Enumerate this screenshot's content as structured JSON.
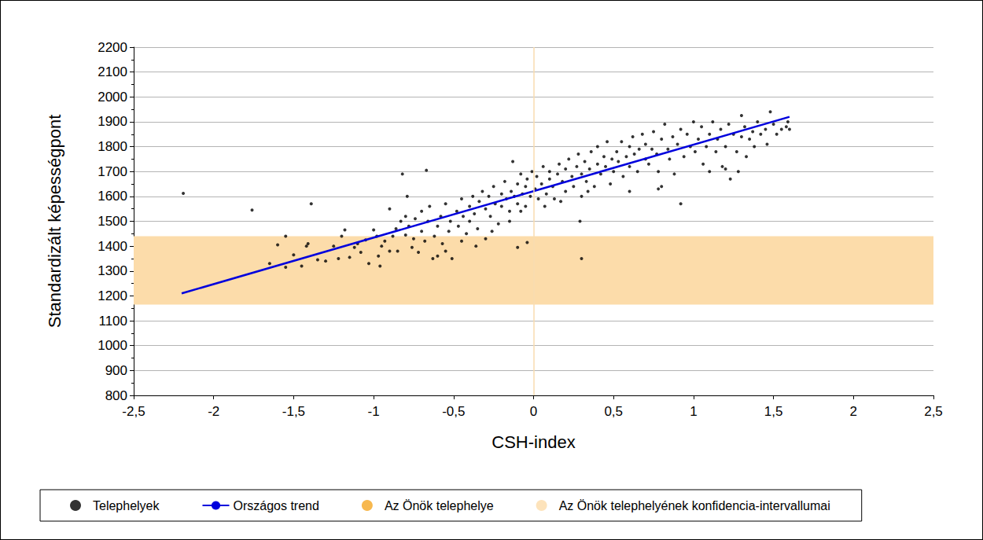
{
  "chart_data": {
    "type": "scatter",
    "x_label": "CSH-index",
    "y_label": "Standardizált képességpont",
    "xlim": [
      -2.5,
      2.5
    ],
    "xticks": [
      {
        "value": -2.5,
        "label": "-2,5"
      },
      -2,
      {
        "value": -1.5,
        "label": "-1,5"
      },
      -1,
      {
        "value": -0.5,
        "label": "-0,5"
      },
      0,
      {
        "value": 0.5,
        "label": "0,5"
      },
      1,
      {
        "value": 1.5,
        "label": "1,5"
      },
      2,
      {
        "value": 2.5,
        "label": "2,5"
      }
    ],
    "ylim": [
      800,
      2200
    ],
    "yticks": [
      800,
      900,
      1000,
      1100,
      1200,
      1300,
      1400,
      1500,
      1600,
      1700,
      1800,
      1900,
      2000,
      2100,
      2200
    ],
    "grid": true,
    "legend": "bottom",
    "vlines": [
      0
    ],
    "series": [
      {
        "name": "Telephelyek",
        "type": "scatter",
        "marker": "circle",
        "color": "#000000",
        "x": [
          -2.19,
          -1.76,
          -1.39,
          -0.82,
          -0.67,
          0.3,
          -0.04,
          -0.1,
          -1.65,
          -1.55,
          -1.55,
          0.92,
          0.29,
          1.48,
          1.3,
          -1.6,
          -1.5,
          -1.45,
          -1.42,
          -1.41,
          -1.35,
          -1.3,
          -1.25,
          -1.22,
          -1.2,
          -1.18,
          -1.15,
          -1.12,
          -1.1,
          -1.05,
          -1.03,
          -1.0,
          -0.98,
          -0.97,
          -0.96,
          -1.08,
          -0.95,
          -0.93,
          -0.9,
          -0.9,
          -0.88,
          -0.86,
          -0.85,
          -0.83,
          -0.8,
          -0.8,
          -0.79,
          -0.78,
          -0.76,
          -0.75,
          -0.74,
          -0.72,
          -0.7,
          -0.7,
          -0.68,
          -0.66,
          -0.65,
          -0.63,
          -0.62,
          -0.6,
          -0.58,
          -0.57,
          -0.55,
          -0.53,
          -0.52,
          -0.51,
          -0.55,
          -0.6,
          -0.48,
          -0.47,
          -0.45,
          -0.44,
          -0.42,
          -0.4,
          -0.4,
          -0.38,
          -0.37,
          -0.35,
          -0.34,
          -0.32,
          -0.3,
          -0.3,
          -0.28,
          -0.27,
          -0.25,
          -0.24,
          -0.22,
          -0.2,
          -0.2,
          -0.18,
          -0.17,
          -0.15,
          -0.14,
          -0.13,
          -0.12,
          -0.1,
          -0.1,
          -0.08,
          -0.07,
          -0.05,
          -0.05,
          -0.04,
          -0.02,
          -0.01,
          -0.45,
          -0.36,
          -0.26,
          -0.15,
          -0.08,
          0.01,
          0.02,
          0.03,
          0.05,
          0.06,
          0.08,
          0.1,
          0.1,
          0.12,
          0.13,
          0.15,
          0.16,
          0.18,
          0.2,
          0.2,
          0.22,
          0.24,
          0.25,
          0.27,
          0.28,
          0.3,
          0.3,
          0.32,
          0.33,
          0.35,
          0.36,
          0.38,
          0.4,
          0.4,
          0.42,
          0.44,
          0.45,
          0.46,
          0.48,
          0.49,
          0.07,
          0.17,
          0.34,
          0.5,
          0.52,
          0.53,
          0.55,
          0.56,
          0.58,
          0.6,
          0.6,
          0.62,
          0.63,
          0.65,
          0.66,
          0.68,
          0.7,
          0.7,
          0.72,
          0.74,
          0.75,
          0.77,
          0.78,
          0.8,
          0.8,
          0.82,
          0.84,
          0.85,
          0.87,
          0.88,
          0.9,
          0.92,
          0.94,
          0.96,
          0.98,
          0.6,
          0.78,
          1.0,
          1.01,
          1.03,
          1.05,
          1.06,
          1.08,
          1.1,
          1.1,
          1.12,
          1.14,
          1.15,
          1.17,
          1.18,
          1.2,
          1.22,
          1.23,
          1.25,
          1.27,
          1.28,
          1.3,
          1.32,
          1.33,
          1.35,
          1.37,
          1.38,
          1.4,
          1.42,
          1.45,
          1.46,
          1.5,
          1.52,
          1.55,
          1.58,
          1.59,
          1.6,
          1.2
        ],
        "values": [
          1612,
          1545,
          1570,
          1690,
          1705,
          1350,
          1415,
          1395,
          1330,
          1315,
          1440,
          1570,
          1500,
          1940,
          1925,
          1405,
          1365,
          1320,
          1400,
          1410,
          1345,
          1340,
          1400,
          1350,
          1440,
          1465,
          1355,
          1395,
          1410,
          1425,
          1330,
          1465,
          1440,
          1360,
          1320,
          1375,
          1400,
          1420,
          1380,
          1550,
          1440,
          1470,
          1380,
          1500,
          1520,
          1445,
          1600,
          1480,
          1395,
          1430,
          1510,
          1375,
          1460,
          1540,
          1420,
          1500,
          1560,
          1350,
          1440,
          1480,
          1520,
          1410,
          1570,
          1460,
          1500,
          1350,
          1380,
          1360,
          1540,
          1480,
          1590,
          1520,
          1450,
          1560,
          1500,
          1600,
          1530,
          1470,
          1580,
          1620,
          1550,
          1430,
          1600,
          1520,
          1640,
          1570,
          1490,
          1610,
          1560,
          1660,
          1590,
          1540,
          1620,
          1740,
          1600,
          1570,
          1650,
          1690,
          1610,
          1560,
          1640,
          1670,
          1600,
          1700,
          1420,
          1400,
          1460,
          1500,
          1540,
          1630,
          1680,
          1590,
          1650,
          1720,
          1610,
          1670,
          1700,
          1640,
          1590,
          1690,
          1730,
          1660,
          1620,
          1710,
          1750,
          1680,
          1640,
          1720,
          1770,
          1690,
          1600,
          1740,
          1660,
          1710,
          1780,
          1640,
          1730,
          1800,
          1690,
          1760,
          1720,
          1820,
          1650,
          1750,
          1560,
          1580,
          1620,
          1700,
          1780,
          1740,
          1820,
          1680,
          1760,
          1800,
          1720,
          1840,
          1770,
          1700,
          1790,
          1850,
          1750,
          1810,
          1730,
          1790,
          1860,
          1770,
          1700,
          1830,
          1640,
          1890,
          1790,
          1750,
          1840,
          1690,
          1810,
          1870,
          1760,
          1850,
          1800,
          1620,
          1630,
          1900,
          1780,
          1830,
          1880,
          1730,
          1800,
          1850,
          1700,
          1900,
          1780,
          1830,
          1870,
          1720,
          1800,
          1890,
          1670,
          1850,
          1780,
          1700,
          1840,
          1880,
          1760,
          1830,
          1860,
          1800,
          1900,
          1850,
          1870,
          1810,
          1890,
          1850,
          1870,
          1880,
          1900,
          1870,
          1710
        ]
      },
      {
        "name": "Országos trend",
        "type": "line",
        "line_style": "solid",
        "color": "#0000dd",
        "x": [
          -2.2,
          1.6
        ],
        "values": [
          1210,
          1920
        ]
      },
      {
        "name": "Az Önök telephelye",
        "type": "scatter",
        "marker": "circle",
        "color": "#f5a623",
        "x": [],
        "values": []
      },
      {
        "name": "Az Önök telephelyének konfidencia-intervallumai",
        "type": "band",
        "color": "#fcdcaa",
        "range": [
          1165,
          1440
        ]
      }
    ]
  }
}
